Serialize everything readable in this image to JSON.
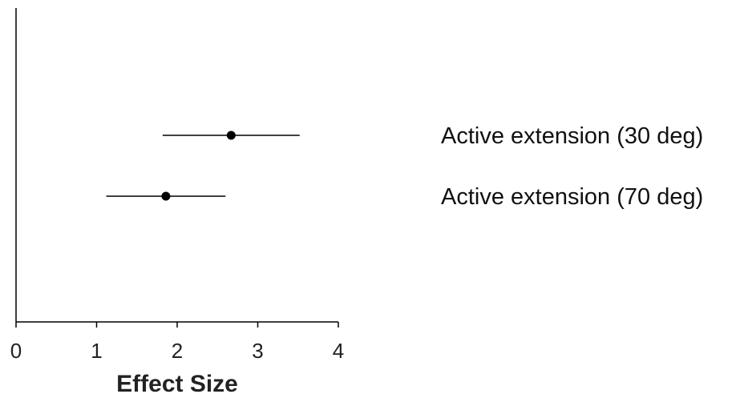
{
  "chart_data": {
    "type": "scatter",
    "title": "",
    "xlabel": "Effect Size",
    "ylabel": "",
    "xlim": [
      0,
      4
    ],
    "xticks": [
      0,
      1,
      2,
      3,
      4
    ],
    "grid": false,
    "rows": [
      {
        "label": "Active extension (30 deg)",
        "estimate": 2.67,
        "ci_low": 1.82,
        "ci_high": 3.52
      },
      {
        "label": "Active extension (70 deg)",
        "estimate": 1.86,
        "ci_low": 1.12,
        "ci_high": 2.6
      }
    ]
  },
  "colors": {
    "marker": "#000000",
    "axis": "#000000",
    "text": "#222222"
  }
}
